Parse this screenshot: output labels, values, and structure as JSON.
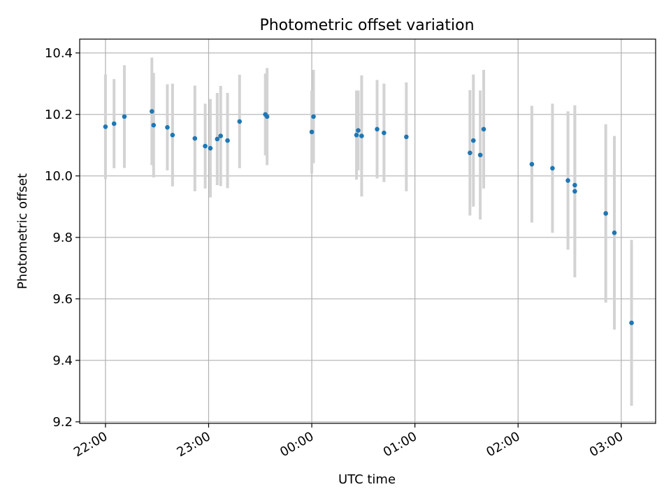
{
  "chart_data": {
    "type": "scatter",
    "title": "Photometric offset variation",
    "xlabel": "UTC time",
    "ylabel": "Photometric offset",
    "x_ticks": [
      "22:00",
      "23:00",
      "00:00",
      "01:00",
      "02:00",
      "03:00"
    ],
    "x_tick_times": [
      "22:00",
      "23:00",
      "24:00",
      "25:00",
      "26:00",
      "27:00"
    ],
    "y_ticks": [
      "9.2",
      "9.4",
      "9.6",
      "9.8",
      "10.0",
      "10.2",
      "10.4"
    ],
    "xlim": [
      "21:45",
      "27:20"
    ],
    "ylim": [
      9.195,
      10.445
    ],
    "grid": true,
    "marker_color": "#1f77b4",
    "errorbar_color": "#d3d3d3",
    "points": [
      {
        "t": "22:00",
        "y": 10.16,
        "err": 0.17
      },
      {
        "t": "22:05",
        "y": 10.17,
        "err": 0.145
      },
      {
        "t": "22:11",
        "y": 10.193,
        "err": 0.167
      },
      {
        "t": "22:27",
        "y": 10.21,
        "err": 0.175
      },
      {
        "t": "22:28",
        "y": 10.165,
        "err": 0.17
      },
      {
        "t": "22:36",
        "y": 10.158,
        "err": 0.14
      },
      {
        "t": "22:39",
        "y": 10.133,
        "err": 0.167
      },
      {
        "t": "22:52",
        "y": 10.122,
        "err": 0.172
      },
      {
        "t": "22:58",
        "y": 10.097,
        "err": 0.138
      },
      {
        "t": "23:01",
        "y": 10.09,
        "err": 0.16
      },
      {
        "t": "23:05",
        "y": 10.12,
        "err": 0.15
      },
      {
        "t": "23:07",
        "y": 10.13,
        "err": 0.163
      },
      {
        "t": "23:11",
        "y": 10.115,
        "err": 0.155
      },
      {
        "t": "23:18",
        "y": 10.177,
        "err": 0.152
      },
      {
        "t": "23:33",
        "y": 10.2,
        "err": 0.133
      },
      {
        "t": "23:34",
        "y": 10.193,
        "err": 0.158
      },
      {
        "t": "24:00",
        "y": 10.143,
        "err": 0.135
      },
      {
        "t": "24:01",
        "y": 10.193,
        "err": 0.152
      },
      {
        "t": "24:26",
        "y": 10.133,
        "err": 0.145
      },
      {
        "t": "24:27",
        "y": 10.148,
        "err": 0.13
      },
      {
        "t": "24:29",
        "y": 10.13,
        "err": 0.197
      },
      {
        "t": "24:38",
        "y": 10.152,
        "err": 0.16
      },
      {
        "t": "24:42",
        "y": 10.14,
        "err": 0.16
      },
      {
        "t": "24:55",
        "y": 10.127,
        "err": 0.177
      },
      {
        "t": "25:32",
        "y": 10.075,
        "err": 0.204
      },
      {
        "t": "25:34",
        "y": 10.115,
        "err": 0.215
      },
      {
        "t": "25:38",
        "y": 10.068,
        "err": 0.21
      },
      {
        "t": "25:40",
        "y": 10.152,
        "err": 0.193
      },
      {
        "t": "26:08",
        "y": 10.038,
        "err": 0.19
      },
      {
        "t": "26:20",
        "y": 10.025,
        "err": 0.21
      },
      {
        "t": "26:29",
        "y": 9.985,
        "err": 0.225
      },
      {
        "t": "26:33",
        "y": 9.97,
        "err": 0.225
      },
      {
        "t": "26:33",
        "y": 9.95,
        "err": 0.28
      },
      {
        "t": "26:51",
        "y": 9.878,
        "err": 0.29
      },
      {
        "t": "26:56",
        "y": 9.815,
        "err": 0.315
      },
      {
        "t": "27:06",
        "y": 9.522,
        "err": 0.27
      }
    ]
  }
}
